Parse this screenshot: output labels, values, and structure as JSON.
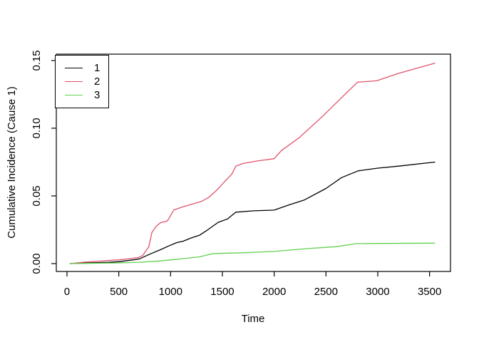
{
  "figure": {
    "background": "#ffffff"
  },
  "chart_data": {
    "type": "line",
    "title": "",
    "xlabel": "Time",
    "ylabel": "Cumulative Incidence (Cause 1)",
    "xlim": [
      -103,
      3702
    ],
    "ylim": [
      -0.0058,
      0.1547
    ],
    "x_ticks": [
      0,
      500,
      1000,
      1500,
      2000,
      2500,
      3000,
      3500
    ],
    "x_tick_labels": [
      "0",
      "500",
      "1000",
      "1500",
      "2000",
      "2500",
      "3000",
      "3500"
    ],
    "y_ticks": [
      0,
      0.05,
      0.1,
      0.15
    ],
    "y_tick_labels": [
      "0.00",
      "0.05",
      "0.10",
      "0.15"
    ],
    "grid": false,
    "box": true,
    "legend": {
      "position": "topleft",
      "entries": [
        {
          "label": "1",
          "color": "#000000"
        },
        {
          "label": "2",
          "color": "#DF536B"
        },
        {
          "label": "3",
          "color": "#61D04F"
        }
      ]
    },
    "series": [
      {
        "name": "1",
        "color": "#000000",
        "points": [
          [
            30,
            0
          ],
          [
            200,
            0.0005
          ],
          [
            400,
            0.001
          ],
          [
            500,
            0.0014
          ],
          [
            660,
            0.003
          ],
          [
            700,
            0.0035
          ],
          [
            800,
            0.007
          ],
          [
            910,
            0.0105
          ],
          [
            980,
            0.013
          ],
          [
            1060,
            0.0155
          ],
          [
            1120,
            0.0165
          ],
          [
            1200,
            0.019
          ],
          [
            1280,
            0.021
          ],
          [
            1350,
            0.0245
          ],
          [
            1460,
            0.0305
          ],
          [
            1550,
            0.033
          ],
          [
            1630,
            0.038
          ],
          [
            1800,
            0.039
          ],
          [
            2000,
            0.0395
          ],
          [
            2150,
            0.0435
          ],
          [
            2290,
            0.047
          ],
          [
            2500,
            0.0555
          ],
          [
            2650,
            0.0635
          ],
          [
            2810,
            0.0685
          ],
          [
            3000,
            0.0705
          ],
          [
            3200,
            0.072
          ],
          [
            3550,
            0.075
          ]
        ]
      },
      {
        "name": "2",
        "color": "#DF536B",
        "points": [
          [
            30,
            0
          ],
          [
            150,
            0.001
          ],
          [
            300,
            0.0018
          ],
          [
            500,
            0.0028
          ],
          [
            615,
            0.0037
          ],
          [
            690,
            0.0045
          ],
          [
            730,
            0.006
          ],
          [
            790,
            0.0125
          ],
          [
            820,
            0.023
          ],
          [
            860,
            0.0275
          ],
          [
            900,
            0.0301
          ],
          [
            970,
            0.0315
          ],
          [
            1030,
            0.0395
          ],
          [
            1100,
            0.0415
          ],
          [
            1300,
            0.046
          ],
          [
            1370,
            0.049
          ],
          [
            1450,
            0.0545
          ],
          [
            1520,
            0.0605
          ],
          [
            1590,
            0.066
          ],
          [
            1630,
            0.072
          ],
          [
            1700,
            0.074
          ],
          [
            1850,
            0.076
          ],
          [
            2000,
            0.0775
          ],
          [
            2070,
            0.0835
          ],
          [
            2250,
            0.0935
          ],
          [
            2270,
            0.095
          ],
          [
            2450,
            0.1075
          ],
          [
            2650,
            0.1225
          ],
          [
            2805,
            0.134
          ],
          [
            2990,
            0.135
          ],
          [
            3200,
            0.1405
          ],
          [
            3550,
            0.148
          ]
        ]
      },
      {
        "name": "3",
        "color": "#61D04F",
        "points": [
          [
            30,
            0
          ],
          [
            300,
            0.0003
          ],
          [
            500,
            0.0005
          ],
          [
            700,
            0.001
          ],
          [
            900,
            0.002
          ],
          [
            1100,
            0.0035
          ],
          [
            1280,
            0.005
          ],
          [
            1400,
            0.0072
          ],
          [
            1450,
            0.0075
          ],
          [
            1700,
            0.008
          ],
          [
            2000,
            0.009
          ],
          [
            2300,
            0.011
          ],
          [
            2600,
            0.0125
          ],
          [
            2790,
            0.0147
          ],
          [
            3000,
            0.0149
          ],
          [
            3550,
            0.0151
          ]
        ]
      }
    ]
  }
}
